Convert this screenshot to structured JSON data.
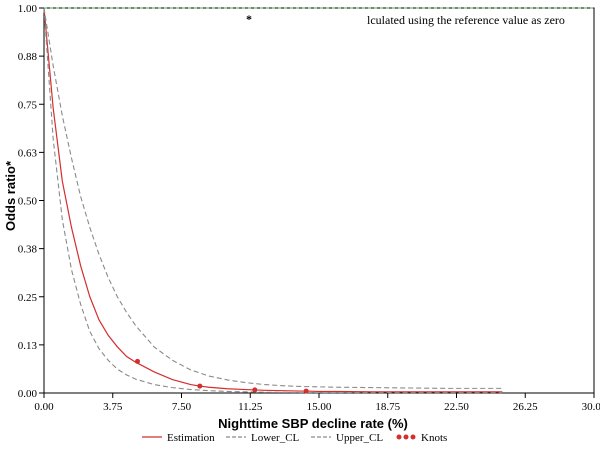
{
  "chart_data": {
    "type": "line",
    "xlabel": "Nighttime SBP decline rate (%)",
    "ylabel": "Odds ratio*",
    "xlim": [
      0,
      30
    ],
    "ylim": [
      0,
      1
    ],
    "x_ticks": [
      "0.00",
      "3.75",
      "7.50",
      "11.25",
      "15.00",
      "18.75",
      "22.50",
      "26.25",
      "30.00"
    ],
    "y_ticks": [
      "0.00",
      "0.13",
      "0.25",
      "0.38",
      "0.50",
      "0.63",
      "0.75",
      "0.88",
      "1.00"
    ],
    "annotation_marker": "*",
    "annotation_text": "lculated using the reference value as zero",
    "reference_line": {
      "y": 1.0,
      "color": "#4caf50"
    },
    "legend_position": "bottom",
    "series": [
      {
        "name": "Estimation",
        "color": "#d32f2f",
        "style": "solid",
        "x": [
          0,
          0.5,
          1,
          1.5,
          2,
          2.5,
          3,
          3.5,
          4,
          4.5,
          5,
          6,
          7,
          8,
          8.5,
          9,
          10,
          11,
          11.5,
          12,
          13,
          14,
          14.3,
          15,
          16,
          18,
          20,
          22,
          24,
          25
        ],
        "y": [
          1.0,
          0.74,
          0.55,
          0.43,
          0.33,
          0.25,
          0.19,
          0.15,
          0.12,
          0.095,
          0.08,
          0.055,
          0.035,
          0.022,
          0.018,
          0.015,
          0.011,
          0.009,
          0.008,
          0.007,
          0.006,
          0.005,
          0.005,
          0.004,
          0.004,
          0.003,
          0.003,
          0.003,
          0.003,
          0.003
        ]
      },
      {
        "name": "Lower_CL",
        "color": "#8a8a8a",
        "style": "dashed",
        "x": [
          0,
          0.5,
          1,
          1.5,
          2,
          2.5,
          3,
          3.5,
          4,
          4.5,
          5,
          6,
          7,
          8,
          9,
          10,
          11,
          12,
          13,
          14,
          15,
          16,
          18,
          20,
          22,
          24,
          25
        ],
        "y": [
          1.0,
          0.66,
          0.45,
          0.32,
          0.23,
          0.16,
          0.115,
          0.085,
          0.062,
          0.047,
          0.036,
          0.022,
          0.014,
          0.009,
          0.006,
          0.004,
          0.003,
          0.002,
          0.0015,
          0.001,
          0.001,
          0.001,
          0.001,
          0.001,
          0.001,
          0.001,
          0.001
        ]
      },
      {
        "name": "Upper_CL",
        "color": "#8a8a8a",
        "style": "dashed",
        "x": [
          0,
          0.5,
          1,
          1.5,
          2,
          2.5,
          3,
          3.5,
          4,
          4.5,
          5,
          6,
          7,
          8,
          9,
          10,
          11,
          12,
          13,
          14,
          15,
          16,
          18,
          20,
          22,
          24,
          25
        ],
        "y": [
          1.0,
          0.85,
          0.72,
          0.61,
          0.51,
          0.43,
          0.36,
          0.3,
          0.25,
          0.21,
          0.175,
          0.12,
          0.085,
          0.06,
          0.044,
          0.034,
          0.027,
          0.022,
          0.019,
          0.017,
          0.016,
          0.015,
          0.014,
          0.013,
          0.012,
          0.012,
          0.012
        ]
      },
      {
        "name": "Knots",
        "color": "#d32f2f",
        "style": "points",
        "x": [
          5.1,
          8.5,
          11.5,
          14.3
        ],
        "y": [
          0.082,
          0.018,
          0.008,
          0.005
        ]
      }
    ]
  }
}
